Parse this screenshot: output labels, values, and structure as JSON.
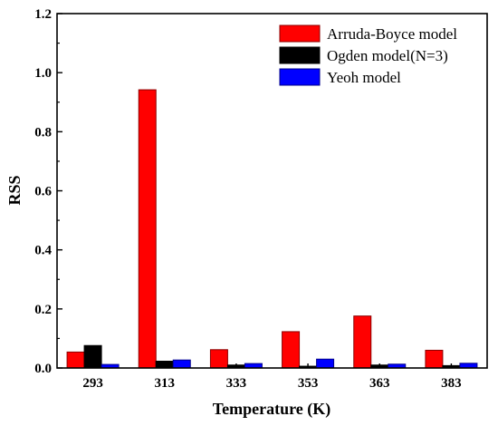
{
  "chart_data": {
    "type": "bar",
    "title": "",
    "xlabel": "Temperature (K)",
    "ylabel": "RSS",
    "categories": [
      "293",
      "313",
      "333",
      "353",
      "363",
      "383"
    ],
    "ylim": [
      0,
      1.2
    ],
    "yticks": [
      "0.0",
      "0.2",
      "0.4",
      "0.6",
      "0.8",
      "1.0",
      "1.2"
    ],
    "grid": false,
    "legend_position": "top-right",
    "series": [
      {
        "name": "Arruda-Boyce model",
        "color": "#ff0000",
        "values": [
          0.054,
          0.942,
          0.062,
          0.123,
          0.176,
          0.06
        ]
      },
      {
        "name": "Ogden model(N=3)",
        "color": "#000000",
        "values": [
          0.076,
          0.023,
          0.01,
          0.006,
          0.01,
          0.008
        ]
      },
      {
        "name": "Yeoh model",
        "color": "#0000ff",
        "values": [
          0.012,
          0.027,
          0.015,
          0.03,
          0.013,
          0.016
        ]
      }
    ]
  }
}
